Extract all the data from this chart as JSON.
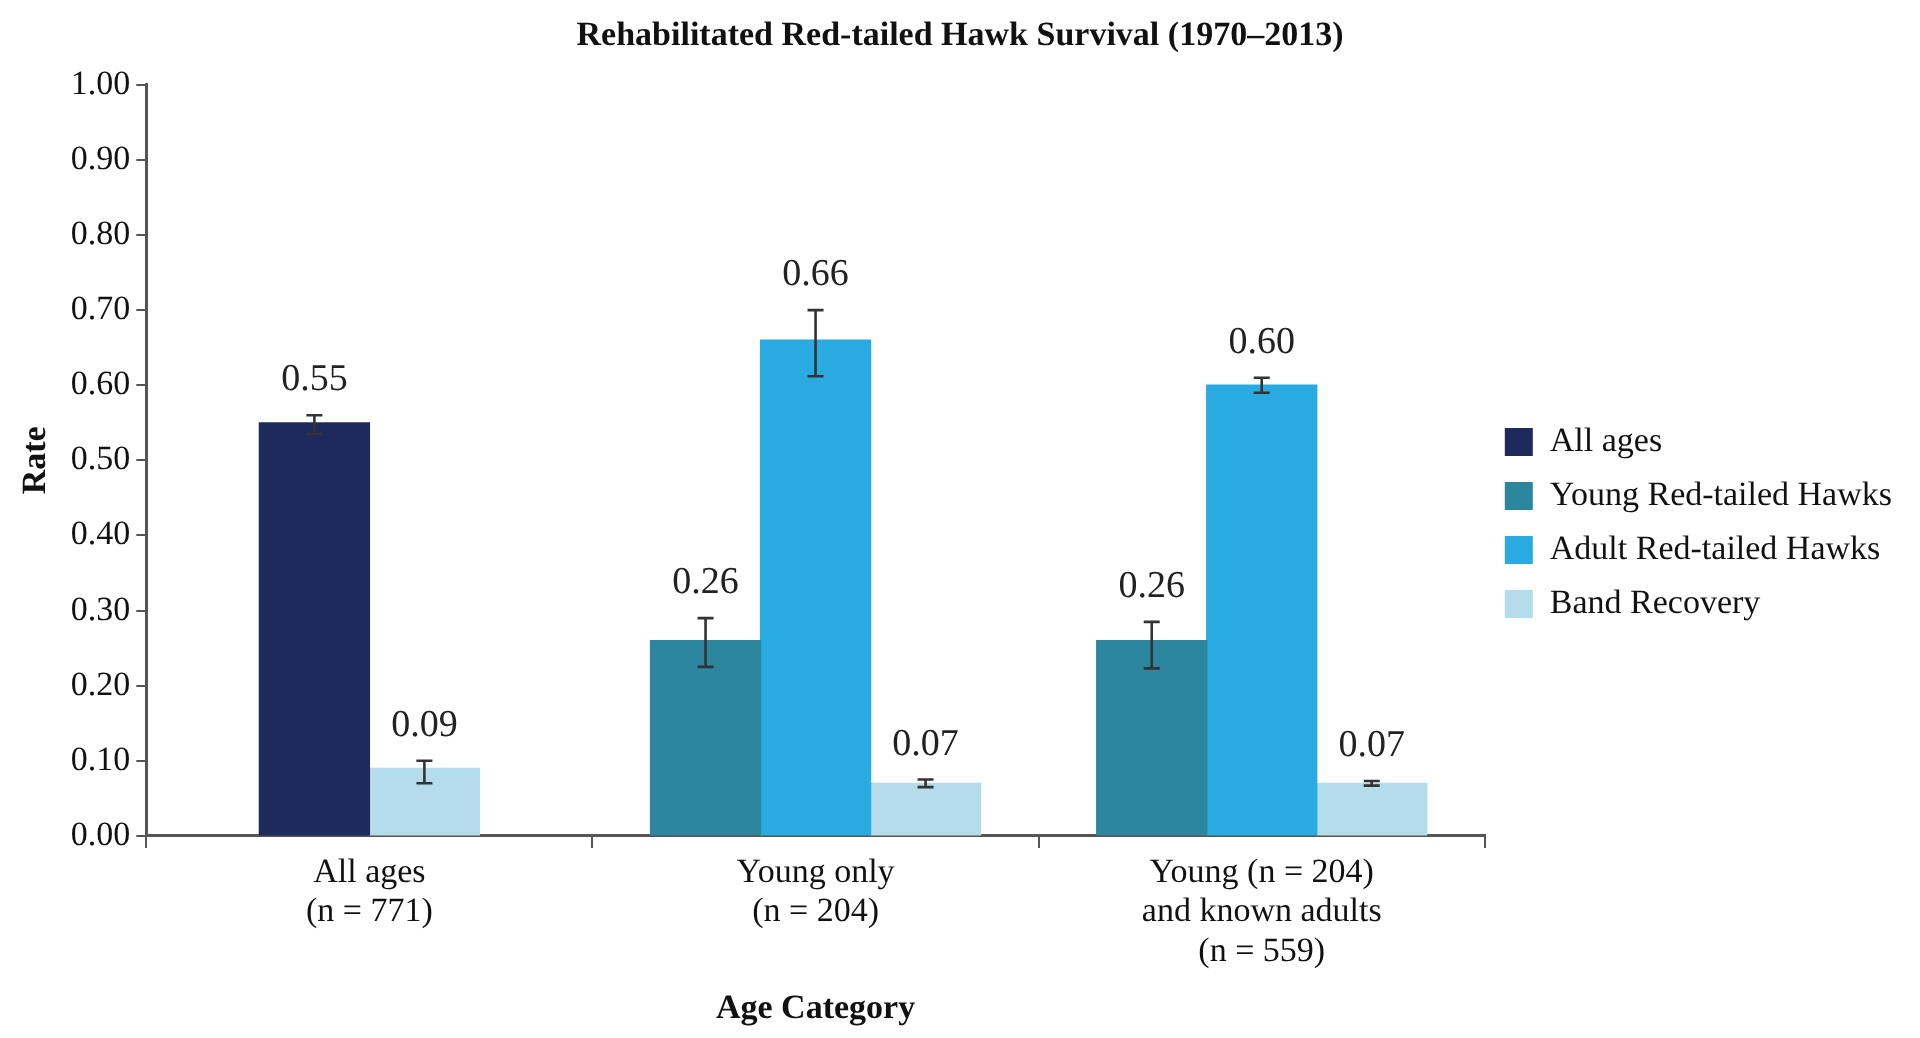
{
  "chart_data": {
    "type": "bar",
    "title": "Rehabilitated Red-tailed Hawk Survival (1970–2013)",
    "xlabel": "Age Category",
    "ylabel": "Rate",
    "categories": [
      "All ages\n(n = 771)",
      "Young only\n(n = 204)",
      "Young (n = 204)\nand known adults\n(n = 559)"
    ],
    "series": [
      {
        "name": "All ages",
        "color": "#1f2a5c",
        "values": [
          0.55,
          null,
          null
        ],
        "errors": [
          [
            0.535,
            0.56
          ],
          null,
          null
        ],
        "value_labels": [
          "0.55",
          null,
          null
        ]
      },
      {
        "name": "Young Red-tailed Hawks",
        "color": "#2b869e",
        "values": [
          null,
          0.26,
          0.26
        ],
        "errors": [
          null,
          [
            0.225,
            0.29
          ],
          [
            0.223,
            0.285
          ]
        ],
        "value_labels": [
          null,
          "0.26",
          "0.26"
        ]
      },
      {
        "name": "Adult Red-tailed Hawks",
        "color": "#29abe2",
        "values": [
          null,
          0.66,
          0.6
        ],
        "errors": [
          null,
          [
            0.612,
            0.7
          ],
          [
            0.59,
            0.61
          ]
        ],
        "value_labels": [
          null,
          "0.66",
          "0.60"
        ]
      },
      {
        "name": "Band Recovery",
        "color": "#b5dcea",
        "values": [
          0.09,
          0.07,
          0.07
        ],
        "errors": [
          [
            0.07,
            0.1
          ],
          [
            0.065,
            0.075
          ],
          [
            0.067,
            0.073
          ]
        ],
        "value_labels": [
          "0.09",
          "0.07",
          "0.07"
        ]
      }
    ],
    "ylim": [
      0,
      1
    ],
    "yticks": [
      {
        "value": 0,
        "label": "0.00"
      },
      {
        "value": 0.1,
        "label": "0.10"
      },
      {
        "value": 0.2,
        "label": "0.20"
      },
      {
        "value": 0.3,
        "label": "0.30"
      },
      {
        "value": 0.4,
        "label": "0.40"
      },
      {
        "value": 0.5,
        "label": "0.50"
      },
      {
        "value": 0.6,
        "label": "0.60"
      },
      {
        "value": 0.7,
        "label": "0.70"
      },
      {
        "value": 0.8,
        "label": "0.80"
      },
      {
        "value": 0.9,
        "label": "0.90"
      },
      {
        "value": 1,
        "label": "1.00"
      }
    ],
    "grid": false,
    "legend": "right"
  }
}
